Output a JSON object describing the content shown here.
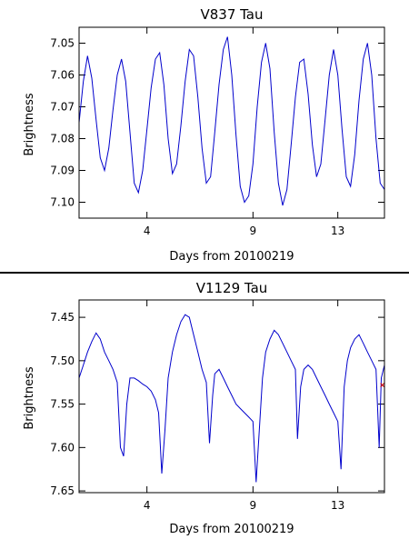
{
  "chart_data": [
    {
      "type": "line",
      "title": "V837 Tau",
      "xlabel": "Days from 20100219",
      "ylabel": "Brightness",
      "xlim": [
        0.8,
        15.2
      ],
      "ylim": [
        7.105,
        7.045
      ],
      "x_ticks": [
        4,
        9,
        13
      ],
      "x_tick_labels": [
        "4",
        "9",
        "13"
      ],
      "y_ticks": [
        7.05,
        7.06,
        7.07,
        7.08,
        7.09,
        7.1
      ],
      "y_tick_labels": [
        "7.05",
        "7.06",
        "7.07",
        "7.08",
        "7.09",
        "7.10"
      ],
      "grid": false,
      "series": [
        {
          "color": "#0000cc",
          "x": [
            0.8,
            1.0,
            1.2,
            1.4,
            1.6,
            1.8,
            2.0,
            2.2,
            2.4,
            2.6,
            2.8,
            3.0,
            3.2,
            3.4,
            3.6,
            3.8,
            4.0,
            4.2,
            4.4,
            4.6,
            4.8,
            5.0,
            5.2,
            5.4,
            5.6,
            5.8,
            6.0,
            6.2,
            6.4,
            6.6,
            6.8,
            7.0,
            7.2,
            7.4,
            7.6,
            7.8,
            8.0,
            8.2,
            8.4,
            8.6,
            8.8,
            9.0,
            9.2,
            9.4,
            9.6,
            9.8,
            10.0,
            10.2,
            10.4,
            10.6,
            10.8,
            11.0,
            11.2,
            11.4,
            11.6,
            11.8,
            12.0,
            12.2,
            12.4,
            12.6,
            12.8,
            13.0,
            13.2,
            13.4,
            13.6,
            13.8,
            14.0,
            14.2,
            14.4,
            14.6,
            14.8,
            15.0,
            15.2
          ],
          "values": [
            7.075,
            7.062,
            7.054,
            7.061,
            7.074,
            7.086,
            7.09,
            7.083,
            7.071,
            7.06,
            7.055,
            7.062,
            7.078,
            7.094,
            7.097,
            7.09,
            7.077,
            7.064,
            7.055,
            7.053,
            7.063,
            7.08,
            7.091,
            7.088,
            7.076,
            7.062,
            7.052,
            7.054,
            7.067,
            7.083,
            7.094,
            7.092,
            7.078,
            7.063,
            7.052,
            7.048,
            7.06,
            7.079,
            7.095,
            7.1,
            7.098,
            7.088,
            7.07,
            7.056,
            7.05,
            7.058,
            7.078,
            7.094,
            7.101,
            7.096,
            7.082,
            7.067,
            7.056,
            7.055,
            7.066,
            7.082,
            7.092,
            7.088,
            7.074,
            7.06,
            7.052,
            7.06,
            7.077,
            7.092,
            7.095,
            7.085,
            7.068,
            7.055,
            7.05,
            7.06,
            7.08,
            7.094,
            7.096
          ]
        }
      ]
    },
    {
      "type": "line",
      "title": "V1129 Tau",
      "xlabel": "Days from 20100219",
      "ylabel": "Brightness",
      "xlim": [
        0.8,
        15.2
      ],
      "ylim": [
        7.652,
        7.43
      ],
      "x_ticks": [
        4,
        9,
        13
      ],
      "x_tick_labels": [
        "4",
        "9",
        "13"
      ],
      "y_ticks": [
        7.45,
        7.5,
        7.55,
        7.6,
        7.65
      ],
      "y_tick_labels": [
        "7.45",
        "7.50",
        "7.55",
        "7.60",
        "7.65"
      ],
      "grid": false,
      "series": [
        {
          "color": "#0000cc",
          "x": [
            0.8,
            1.0,
            1.2,
            1.4,
            1.6,
            1.8,
            2.0,
            2.2,
            2.4,
            2.6,
            2.75,
            2.9,
            3.05,
            3.2,
            3.4,
            3.6,
            3.8,
            4.0,
            4.2,
            4.4,
            4.55,
            4.7,
            4.85,
            5.0,
            5.2,
            5.4,
            5.6,
            5.8,
            6.0,
            6.2,
            6.4,
            6.6,
            6.8,
            6.95,
            7.1,
            7.2,
            7.4,
            7.6,
            7.8,
            8.0,
            8.2,
            8.4,
            8.6,
            8.8,
            9.0,
            9.15,
            9.3,
            9.45,
            9.6,
            9.8,
            10.0,
            10.2,
            10.4,
            10.6,
            10.8,
            11.0,
            11.1,
            11.25,
            11.4,
            11.6,
            11.8,
            12.0,
            12.2,
            12.4,
            12.6,
            12.8,
            13.0,
            13.15,
            13.3,
            13.45,
            13.6,
            13.8,
            14.0,
            14.2,
            14.4,
            14.6,
            14.8,
            14.95,
            15.05,
            15.2
          ],
          "values": [
            7.52,
            7.505,
            7.49,
            7.478,
            7.468,
            7.475,
            7.49,
            7.5,
            7.51,
            7.525,
            7.6,
            7.61,
            7.55,
            7.52,
            7.52,
            7.523,
            7.527,
            7.53,
            7.535,
            7.545,
            7.56,
            7.63,
            7.58,
            7.52,
            7.49,
            7.47,
            7.455,
            7.447,
            7.45,
            7.47,
            7.49,
            7.51,
            7.525,
            7.595,
            7.54,
            7.515,
            7.51,
            7.52,
            7.53,
            7.54,
            7.55,
            7.555,
            7.56,
            7.565,
            7.57,
            7.64,
            7.58,
            7.52,
            7.49,
            7.475,
            7.465,
            7.47,
            7.48,
            7.49,
            7.5,
            7.51,
            7.59,
            7.53,
            7.51,
            7.505,
            7.51,
            7.52,
            7.53,
            7.54,
            7.55,
            7.56,
            7.57,
            7.625,
            7.53,
            7.5,
            7.485,
            7.475,
            7.47,
            7.48,
            7.49,
            7.5,
            7.51,
            7.6,
            7.52,
            7.505
          ],
          "marker": {
            "x": 15.1,
            "y": 7.528,
            "color": "#cc0000"
          }
        }
      ]
    }
  ]
}
